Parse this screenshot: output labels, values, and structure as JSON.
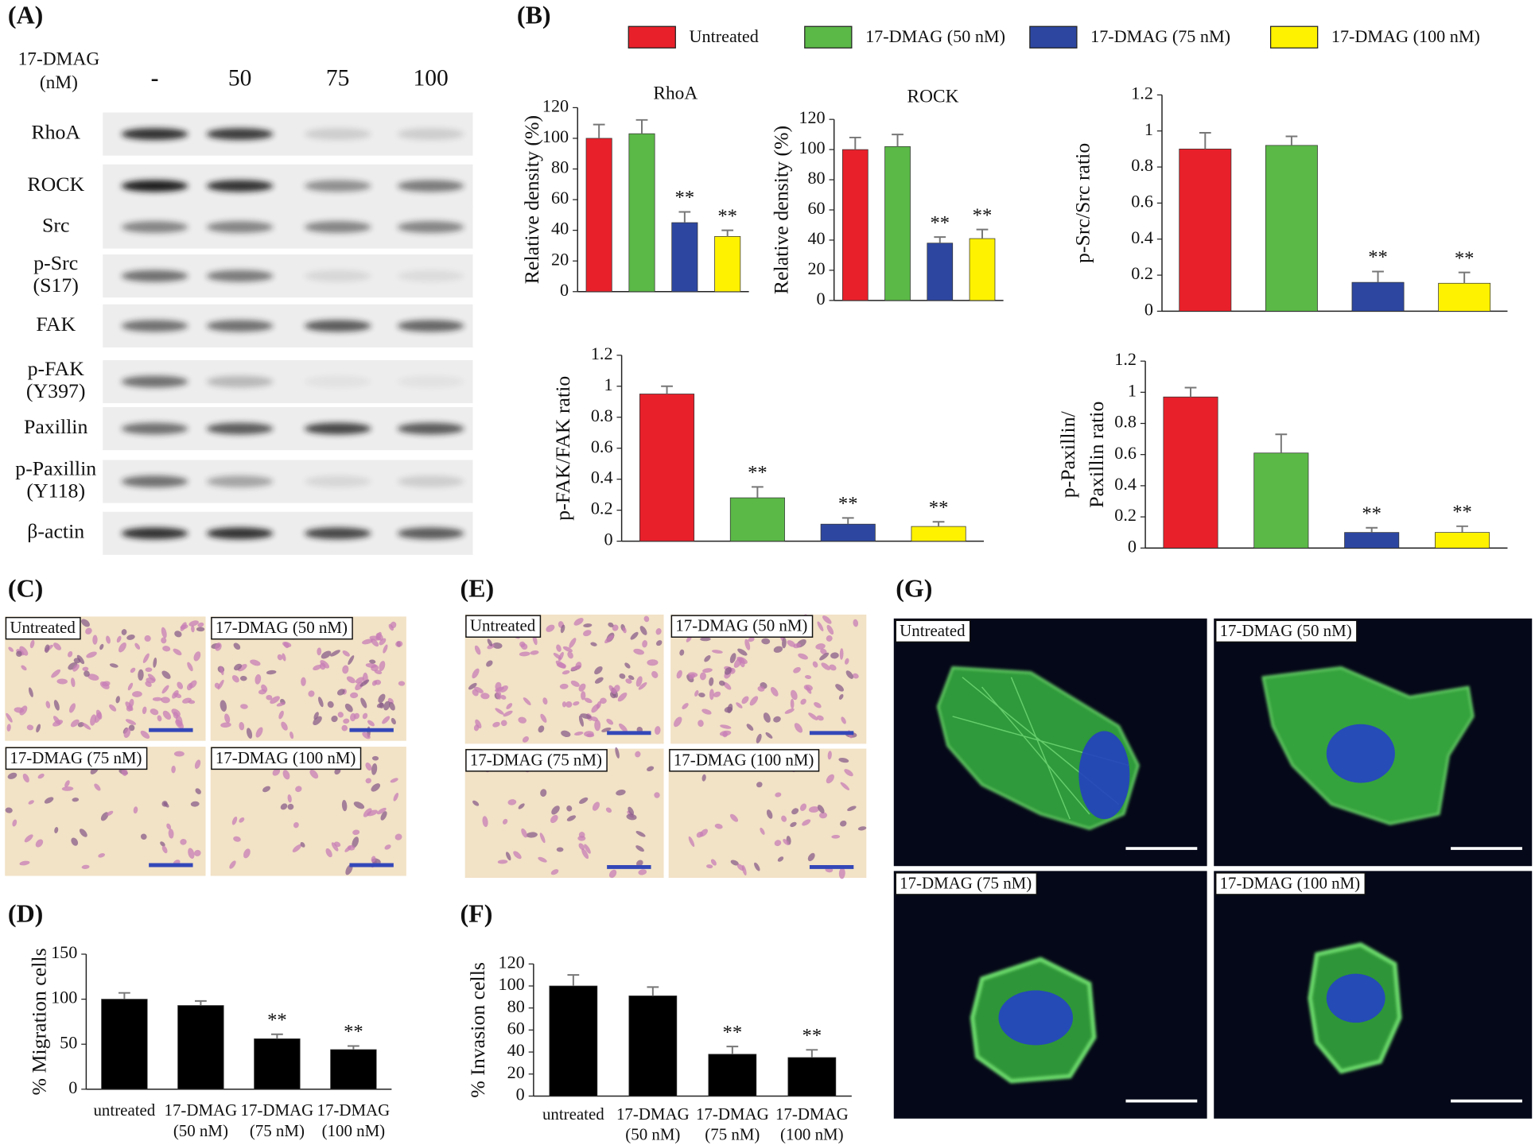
{
  "panel_labels": [
    "(A)",
    "(B)",
    "(C)",
    "(D)",
    "(E)",
    "(F)",
    "(G)"
  ],
  "blot": {
    "treatment_label": [
      "17-DMAG",
      "(nM)"
    ],
    "lanes": [
      "-",
      "50",
      "75",
      "100"
    ],
    "rows": [
      [
        "RhoA"
      ],
      [
        "ROCK"
      ],
      [
        "Src"
      ],
      [
        "p-Src",
        "(S17)"
      ],
      [
        "FAK"
      ],
      [
        "p-FAK",
        "(Y397)"
      ],
      [
        "Paxillin"
      ],
      [
        "p-Paxillin",
        "(Y118)"
      ],
      [
        "β-actin"
      ]
    ]
  },
  "legend": [
    {
      "name": "Untreated",
      "color": "#e8202a"
    },
    {
      "name": "17-DMAG (50 nM)",
      "color": "#5bb947"
    },
    {
      "name": "17-DMAG (75 nM)",
      "color": "#2d47a0"
    },
    {
      "name": "17-DMAG (100 nM)",
      "color": "#fff200"
    }
  ],
  "chart_data": [
    {
      "type": "bar",
      "title": "RhoA",
      "ylabel": [
        "Relative density (%)"
      ],
      "values": [
        100,
        103,
        45,
        36
      ],
      "errors": [
        9,
        9,
        7,
        4
      ],
      "annotations": [
        null,
        null,
        "**",
        "**"
      ],
      "ylim": [
        0,
        120
      ],
      "yticks": [
        0,
        20,
        40,
        60,
        80,
        100,
        120
      ]
    },
    {
      "type": "bar",
      "title": "ROCK",
      "ylabel": [
        "Relative density (%)"
      ],
      "values": [
        100,
        102,
        38,
        41
      ],
      "errors": [
        8,
        8,
        4,
        6
      ],
      "annotations": [
        null,
        null,
        "**",
        "**"
      ],
      "ylim": [
        0,
        120
      ],
      "yticks": [
        0,
        20,
        40,
        60,
        80,
        100,
        120
      ]
    },
    {
      "type": "bar",
      "ylabel": [
        "p-Src/Src ratio"
      ],
      "values": [
        0.9,
        0.92,
        0.16,
        0.155
      ],
      "errors": [
        0.09,
        0.05,
        0.06,
        0.06
      ],
      "annotations": [
        null,
        null,
        "**",
        "**"
      ],
      "ylim": [
        0,
        1.2
      ],
      "yticks": [
        0,
        0.2,
        0.4,
        0.6,
        0.8,
        1,
        1.2
      ]
    },
    {
      "type": "bar",
      "ylabel": [
        "p-FAK/FAK ratio"
      ],
      "values": [
        0.95,
        0.28,
        0.11,
        0.095
      ],
      "errors": [
        0.05,
        0.07,
        0.04,
        0.03
      ],
      "annotations": [
        null,
        "**",
        "**",
        "**"
      ],
      "ylim": [
        0,
        1.2
      ],
      "yticks": [
        0,
        0.2,
        0.4,
        0.6,
        0.8,
        1,
        1.2
      ]
    },
    {
      "type": "bar",
      "ylabel": [
        "p-Paxillin/",
        "Paxillin ratio"
      ],
      "values": [
        0.97,
        0.61,
        0.1,
        0.1
      ],
      "errors": [
        0.06,
        0.12,
        0.03,
        0.04
      ],
      "annotations": [
        null,
        null,
        "**",
        "**"
      ],
      "ylim": [
        0,
        1.2
      ],
      "yticks": [
        0,
        0.2,
        0.4,
        0.6,
        0.8,
        1,
        1.2
      ]
    },
    {
      "type": "bar",
      "ylabel": [
        "% Migration cells"
      ],
      "categories": [
        [
          "untreated"
        ],
        [
          "17-DMAG",
          "(50 nM)"
        ],
        [
          "17-DMAG",
          "(75 nM)"
        ],
        [
          "17-DMAG",
          "(100 nM)"
        ]
      ],
      "values": [
        100,
        93,
        56,
        44
      ],
      "errors": [
        7,
        5,
        5,
        4
      ],
      "annotations": [
        null,
        null,
        "**",
        "**"
      ],
      "color": "#000000",
      "ylim": [
        0,
        150
      ],
      "yticks": [
        0,
        50,
        100,
        150
      ]
    },
    {
      "type": "bar",
      "ylabel": [
        "% Invasion cells"
      ],
      "categories": [
        [
          "untreated"
        ],
        [
          "17-DMAG",
          "(50 nM)"
        ],
        [
          "17-DMAG",
          "(75 nM)"
        ],
        [
          "17-DMAG",
          "(100 nM)"
        ]
      ],
      "values": [
        100,
        91,
        38,
        35
      ],
      "errors": [
        10,
        8,
        7,
        7
      ],
      "annotations": [
        null,
        null,
        "**",
        "**"
      ],
      "color": "#000000",
      "ylim": [
        0,
        120
      ],
      "yticks": [
        0,
        20,
        40,
        60,
        80,
        100,
        120
      ]
    }
  ],
  "migration_images": [
    "Untreated",
    "17-DMAG (50 nM)",
    "17-DMAG (75 nM)",
    "17-DMAG (100 nM)"
  ],
  "invasion_images": [
    "Untreated",
    "17-DMAG (50 nM)",
    "17-DMAG (75 nM)",
    "17-DMAG (100 nM)"
  ],
  "fluorescence_images": [
    "Untreated",
    "17-DMAG (50 nM)",
    "17-DMAG (75 nM)",
    "17-DMAG (100 nM)"
  ]
}
